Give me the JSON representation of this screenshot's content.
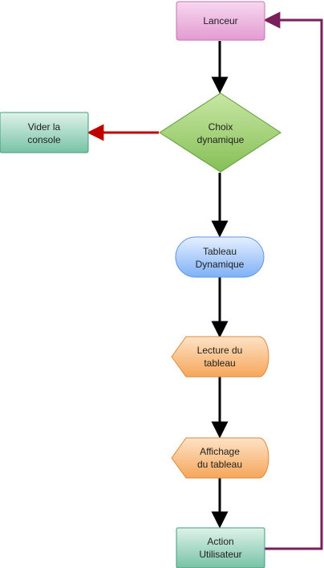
{
  "diagram": {
    "nodes": {
      "lanceur": {
        "label": "Lanceur"
      },
      "choix": {
        "line1": "Choix",
        "line2": "dynamique"
      },
      "vider": {
        "line1": "Vider la",
        "line2": "console"
      },
      "tableau": {
        "line1": "Tableau",
        "line2": "Dynamique"
      },
      "lecture": {
        "line1": "Lecture du",
        "line2": "tableau"
      },
      "affichage": {
        "line1": "Affichage",
        "line2": "du tableau"
      },
      "action": {
        "line1": "Action",
        "line2": "Utilisateur"
      }
    },
    "colors": {
      "main_arrow": "#000000",
      "branch_arrow": "#c00000",
      "loop_arrow": "#7a1f5c"
    }
  }
}
